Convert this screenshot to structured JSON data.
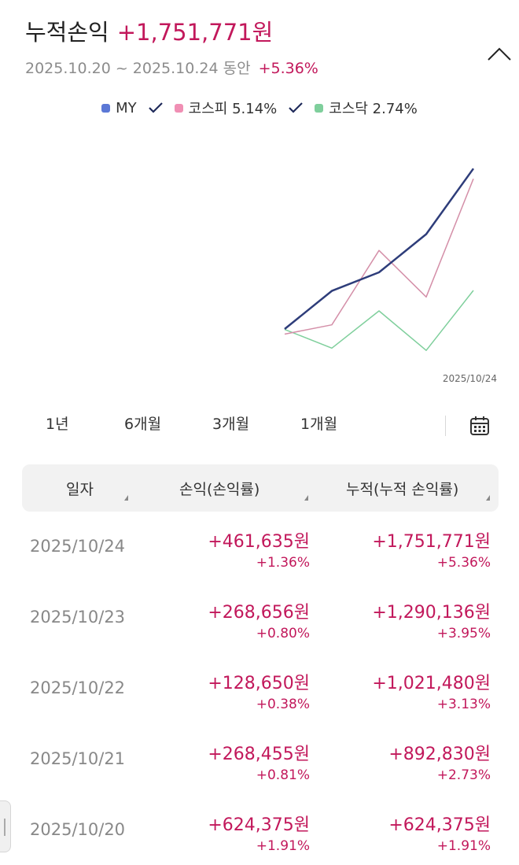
{
  "header": {
    "title": "누적손익",
    "total_amount": "+1,751,771원",
    "period": "2025.10.20 ~ 2025.10.24 동안",
    "period_rate": "+5.36%"
  },
  "legend": {
    "my": "MY",
    "kospi": "코스피 5.14%",
    "kosdaq": "코스닥 2.74%"
  },
  "chart_data": {
    "type": "line",
    "x": [
      "2025/10/20",
      "2025/10/21",
      "2025/10/22",
      "2025/10/23",
      "2025/10/24"
    ],
    "series": [
      {
        "name": "MY",
        "values": [
          1.91,
          2.73,
          3.13,
          3.95,
          5.36
        ]
      },
      {
        "name": "코스피",
        "values": [
          1.8,
          2.0,
          3.6,
          2.6,
          5.14
        ]
      },
      {
        "name": "코스닥",
        "values": [
          1.9,
          1.5,
          2.3,
          1.45,
          2.74
        ]
      }
    ],
    "x_end_label": "2025/10/24",
    "colors": {
      "MY": "#2e3d7a",
      "코스피": "#d48fa8",
      "코스닥": "#7fcf9c"
    },
    "grid": false
  },
  "range_tabs": [
    "1년",
    "6개월",
    "3개월",
    "1개월"
  ],
  "table": {
    "headers": [
      "일자",
      "손익(손익률)",
      "누적(누적 손익률)"
    ],
    "rows": [
      {
        "date": "2025/10/24",
        "pl": "+461,635원",
        "pl_rate": "+1.36%",
        "cum": "+1,751,771원",
        "cum_rate": "+5.36%"
      },
      {
        "date": "2025/10/23",
        "pl": "+268,656원",
        "pl_rate": "+0.80%",
        "cum": "+1,290,136원",
        "cum_rate": "+3.95%"
      },
      {
        "date": "2025/10/22",
        "pl": "+128,650원",
        "pl_rate": "+0.38%",
        "cum": "+1,021,480원",
        "cum_rate": "+3.13%"
      },
      {
        "date": "2025/10/21",
        "pl": "+268,455원",
        "pl_rate": "+0.81%",
        "cum": "+892,830원",
        "cum_rate": "+2.73%"
      },
      {
        "date": "2025/10/20",
        "pl": "+624,375원",
        "pl_rate": "+1.91%",
        "cum": "+624,375원",
        "cum_rate": "+1.91%"
      }
    ]
  },
  "colors": {
    "accent": "#c2185b",
    "my": "#5b78d6",
    "kospi": "#f08fb4",
    "kosdaq": "#7fcf9c",
    "check": "#1f2a5a"
  }
}
